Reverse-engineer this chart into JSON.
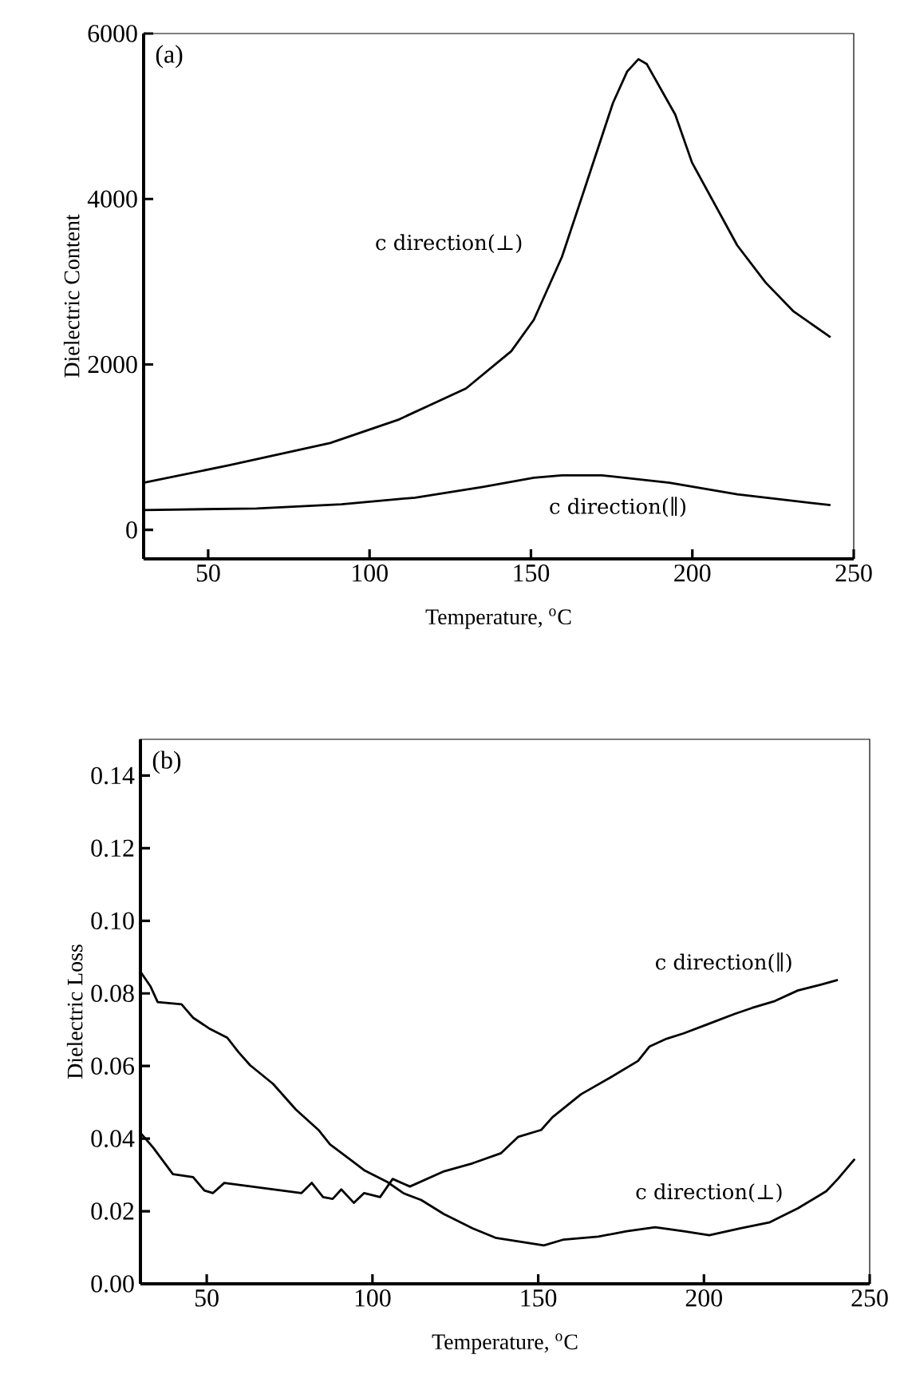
{
  "chart_data": [
    {
      "type": "line",
      "xlabel": "Temperature, $^{o}$C",
      "ylabel": "Dielectric Content",
      "xlim": [
        30,
        250
      ],
      "ylim": [
        -350,
        6000
      ],
      "xticks": [
        50,
        100,
        150,
        200,
        250
      ],
      "yticks": [
        0,
        2000,
        4000,
        6000
      ],
      "line_style": "solid",
      "annotations": [
        "(a)"
      ],
      "series": [
        {
          "name": "c direction(⊥)",
          "color": "#000000",
          "x": [
            30,
            56.3,
            87.8,
            108.8,
            129.9,
            143.9,
            150.9,
            159.6,
            166.6,
            175.4,
            179.8,
            183.3,
            185.9,
            194.7,
            199.9,
            213.9,
            222.7,
            231.4,
            242.8
          ],
          "values": [
            570,
            780,
            1050,
            1330,
            1710,
            2160,
            2540,
            3300,
            4120,
            5160,
            5540,
            5690,
            5630,
            5020,
            4440,
            3440,
            2990,
            2640,
            2330
          ]
        },
        {
          "name": "c direction(∥)",
          "color": "#000000",
          "x": [
            30,
            65,
            91.3,
            114.1,
            135.1,
            150.9,
            159.6,
            171.9,
            192.9,
            213.9,
            231.4,
            242.8
          ],
          "values": [
            240,
            260,
            310,
            390,
            520,
            630,
            660,
            660,
            570,
            430,
            350,
            300
          ]
        }
      ]
    },
    {
      "type": "line",
      "xlabel": "Temperature, $^{o}$C",
      "ylabel": "Dielectric Loss",
      "xlim": [
        30,
        250
      ],
      "ylim": [
        0,
        0.15
      ],
      "xticks": [
        50,
        100,
        150,
        200,
        250
      ],
      "yticks": [
        {
          "value": 0,
          "label": "0.00"
        },
        {
          "value": 0.02,
          "label": "0.02"
        },
        {
          "value": 0.04,
          "label": "0.04"
        },
        {
          "value": 0.06,
          "label": "0.06"
        },
        {
          "value": 0.08,
          "label": "0.08"
        },
        {
          "value": 0.1,
          "label": "0.10"
        },
        {
          "value": 0.12,
          "label": "0.12"
        },
        {
          "value": 0.14,
          "label": "0.14"
        }
      ],
      "line_style": "solid",
      "annotations": [
        "(b)"
      ],
      "series": [
        {
          "name": "c direction(⊥)",
          "color": "#000000",
          "x": [
            30,
            33,
            35.2,
            42.4,
            45.9,
            51,
            56.2,
            59.6,
            63.1,
            70,
            76.9,
            83.7,
            87.2,
            94.1,
            97.5,
            104.4,
            109.5,
            114.7,
            121.6,
            130.2,
            137.1,
            144,
            151.7,
            157.7,
            168.1,
            176.7,
            185.3,
            193.9,
            201.6,
            211.1,
            219.7,
            228.3,
            236.9,
            240.4,
            245.5
          ],
          "values": [
            0.086,
            0.082,
            0.0776,
            0.077,
            0.0733,
            0.0702,
            0.0678,
            0.0638,
            0.0602,
            0.0551,
            0.048,
            0.0424,
            0.0384,
            0.0337,
            0.0313,
            0.0281,
            0.0249,
            0.0231,
            0.0192,
            0.0153,
            0.0127,
            0.0117,
            0.0106,
            0.0122,
            0.013,
            0.0145,
            0.0156,
            0.0145,
            0.0134,
            0.0153,
            0.0169,
            0.0208,
            0.0255,
            0.0289,
            0.0344
          ]
        },
        {
          "name": "c direction(∥)",
          "color": "#000000",
          "x": [
            30,
            33.8,
            39.8,
            45.9,
            49.3,
            51.9,
            55.3,
            78.6,
            81.7,
            85.1,
            88,
            90.6,
            94.4,
            97.5,
            102.3,
            106.1,
            111.3,
            121.6,
            130.2,
            138.8,
            144,
            150.9,
            154.3,
            162.9,
            171.5,
            180.1,
            183.6,
            188.7,
            193.9,
            200.8,
            209.4,
            214.5,
            221.4,
            228.3,
            235.2,
            240.4
          ],
          "values": [
            0.0416,
            0.0376,
            0.0302,
            0.0294,
            0.0257,
            0.025,
            0.0278,
            0.025,
            0.0278,
            0.0239,
            0.0234,
            0.026,
            0.0223,
            0.025,
            0.0239,
            0.0289,
            0.0268,
            0.031,
            0.0332,
            0.036,
            0.0405,
            0.0424,
            0.0459,
            0.0522,
            0.0567,
            0.0614,
            0.0654,
            0.0675,
            0.069,
            0.0714,
            0.0744,
            0.076,
            0.0779,
            0.0808,
            0.0824,
            0.0837
          ]
        }
      ]
    }
  ]
}
